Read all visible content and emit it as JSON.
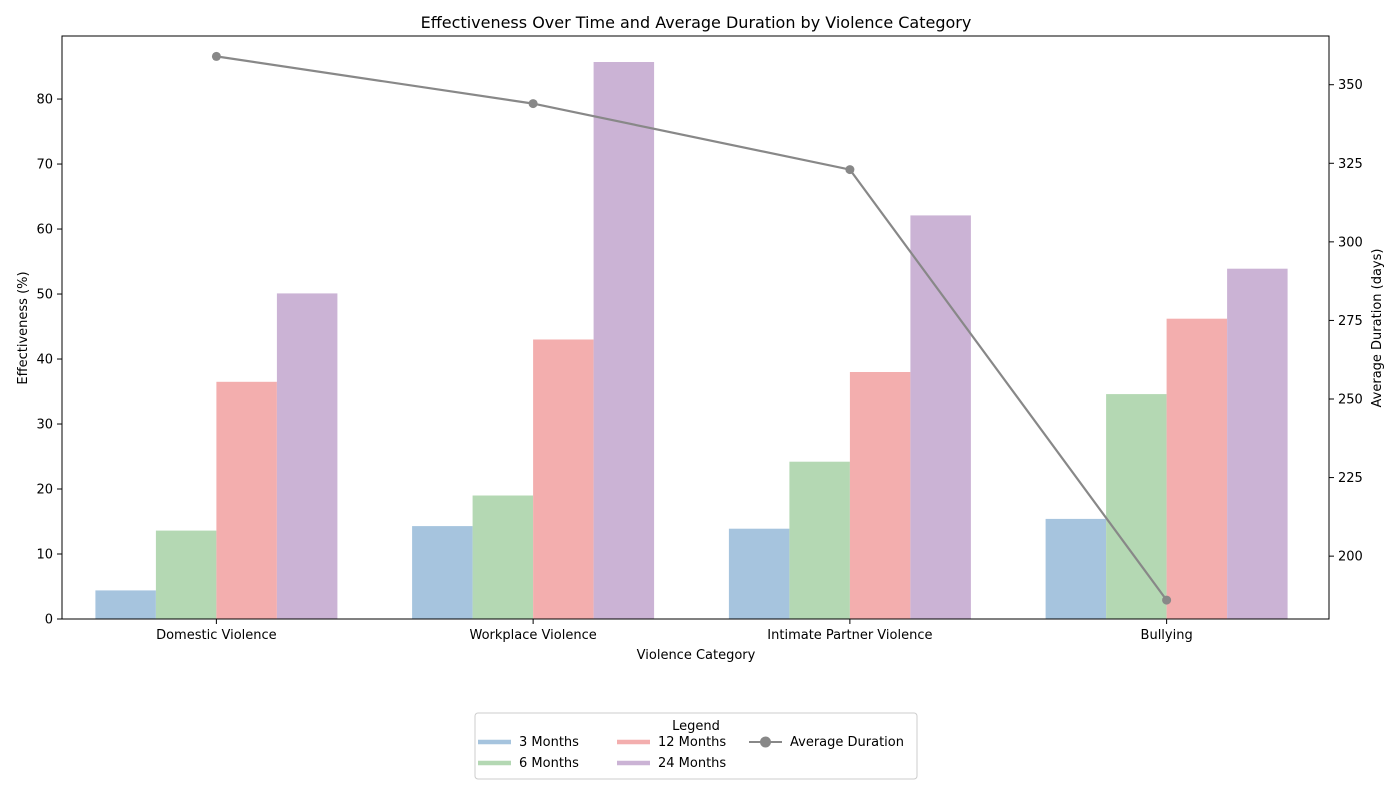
{
  "chart_data": {
    "type": "bar",
    "title": "Effectiveness Over Time and Average Duration by Violence Category",
    "xlabel": "Violence Category",
    "ylabel": "Effectiveness (%)",
    "y2label": "Average Duration (days)",
    "categories": [
      "Domestic Violence",
      "Workplace Violence",
      "Intimate Partner Violence",
      "Bullying"
    ],
    "series": [
      {
        "name": "3 Months",
        "values": [
          4.4,
          14.3,
          13.9,
          15.4
        ],
        "color": "#a6c4de"
      },
      {
        "name": "6 Months",
        "values": [
          13.6,
          19.0,
          24.2,
          34.6
        ],
        "color": "#b4d8b3"
      },
      {
        "name": "12 Months",
        "values": [
          36.5,
          43.0,
          38.0,
          46.2
        ],
        "color": "#f3aeae"
      },
      {
        "name": "24 Months",
        "values": [
          50.1,
          85.7,
          62.1,
          53.9
        ],
        "color": "#cbb3d5"
      }
    ],
    "line_series": {
      "name": "Average Duration",
      "values": [
        359,
        344,
        323,
        186
      ],
      "color": "#888888",
      "axis": "right"
    },
    "ylim": [
      0,
      89.7
    ],
    "y2lim": [
      180,
      365.5
    ],
    "yticks": [
      0,
      10,
      20,
      30,
      40,
      50,
      60,
      70,
      80
    ],
    "y2ticks": [
      200,
      225,
      250,
      275,
      300,
      325,
      350
    ],
    "legend": {
      "title": "Legend",
      "placement": "bottom-center"
    },
    "grid": false
  }
}
